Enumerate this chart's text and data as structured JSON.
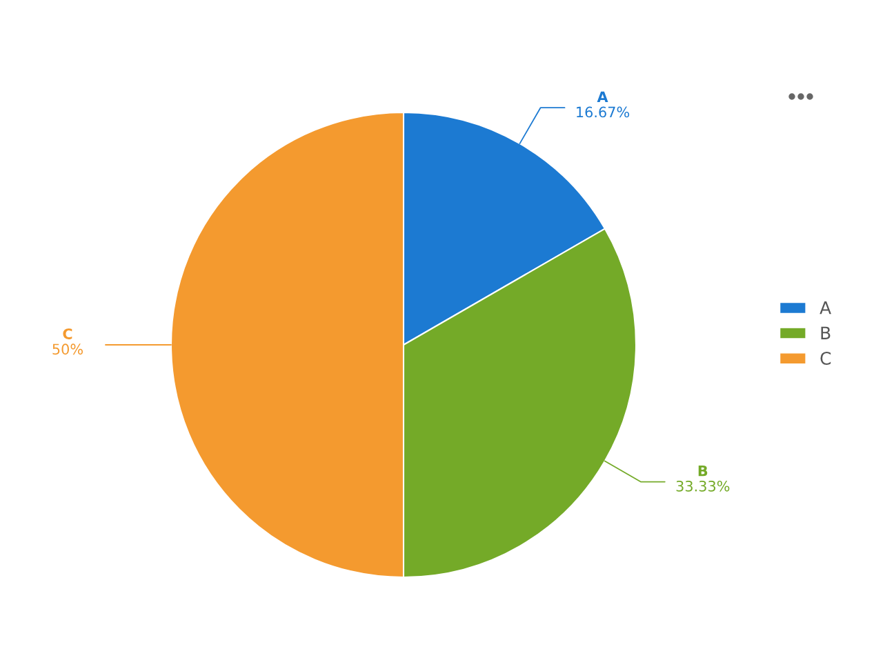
{
  "chart_data": {
    "type": "pie",
    "categories": [
      "A",
      "B",
      "C"
    ],
    "values": [
      16.67,
      33.33,
      50
    ],
    "colors": [
      "#1c7ad2",
      "#74aa28",
      "#f49a2f"
    ],
    "value_labels": [
      "16.67%",
      "33.33%",
      "50%"
    ],
    "legend": "right"
  }
}
